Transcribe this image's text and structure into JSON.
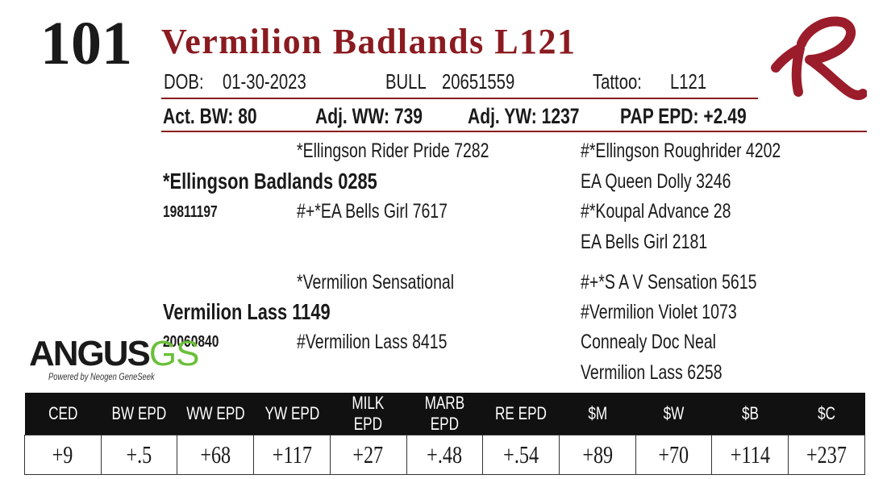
{
  "lot": "101",
  "name": "Vermilion Badlands L121",
  "info": {
    "dob_label": "DOB:",
    "dob": "01-30-2023",
    "sex": "BULL",
    "registration": "20651559",
    "tattoo_label": "Tattoo:",
    "tattoo": "L121"
  },
  "performance": [
    "Act. BW: 80",
    "Adj. WW: 739",
    "Adj. YW: 1237",
    "PAP EPD: +2.49"
  ],
  "pedigree": {
    "sire_sire": "*Ellingson Rider Pride 7282",
    "sire": "*Ellingson Badlands 0285",
    "sire_reg": "19811197",
    "sire_dam": "#+*EA Bells Girl 7617",
    "sire_side": [
      "#*Ellingson Roughrider 4202",
      "EA Queen Dolly 3246",
      "#*Koupal Advance 28",
      "EA Bells Girl 2181"
    ],
    "dam_sire": "*Vermilion Sensational",
    "dam": "Vermilion Lass 1149",
    "dam_reg": "20060840",
    "dam_dam": "#Vermilion Lass 8415",
    "dam_side": [
      "#+*S A V Sensation 5615",
      "#Vermilion Violet 1073",
      "Connealy Doc Neal",
      "Vermilion Lass 6258"
    ]
  },
  "logo": {
    "main": "ANGUS",
    "accent": "GS",
    "tagline": "Powered by Neogen GeneSeek"
  },
  "epd": {
    "headers": [
      "CED",
      "BW EPD",
      "WW EPD",
      "YW EPD",
      "MILK EPD",
      "MARB EPD",
      "RE EPD",
      "$M",
      "$W",
      "$B",
      "$C"
    ],
    "values": [
      "+9",
      "+.5",
      "+68",
      "+117",
      "+27",
      "+.48",
      "+.54",
      "+89",
      "+70",
      "+114",
      "+237"
    ]
  }
}
